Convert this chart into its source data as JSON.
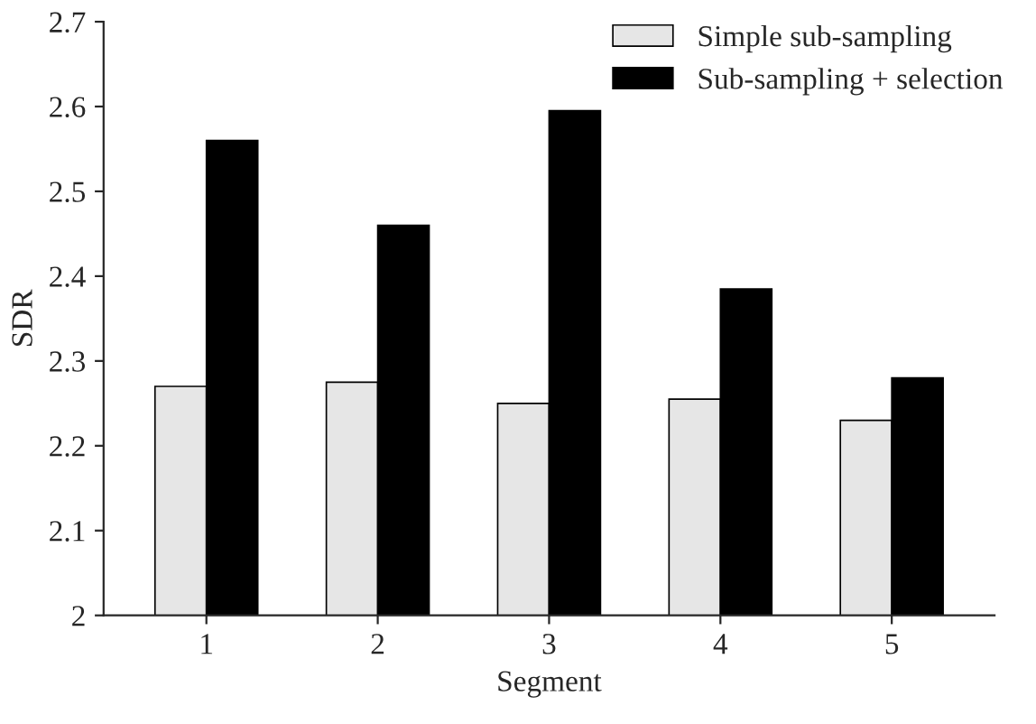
{
  "chart_data": {
    "type": "bar",
    "xlabel": "Segment",
    "ylabel": "SDR",
    "categories": [
      "1",
      "2",
      "3",
      "4",
      "5"
    ],
    "series": [
      {
        "name": "Simple sub-sampling",
        "color": "#e6e6e6",
        "values": [
          2.27,
          2.275,
          2.25,
          2.255,
          2.23
        ]
      },
      {
        "name": "Sub-sampling + selection",
        "color": "#000000",
        "values": [
          2.56,
          2.46,
          2.595,
          2.385,
          2.28
        ]
      }
    ],
    "ylim": [
      2,
      2.7
    ],
    "yticks": [
      2,
      2.1,
      2.2,
      2.3,
      2.4,
      2.5,
      2.6,
      2.7
    ],
    "grid": false,
    "legend": "top right"
  }
}
